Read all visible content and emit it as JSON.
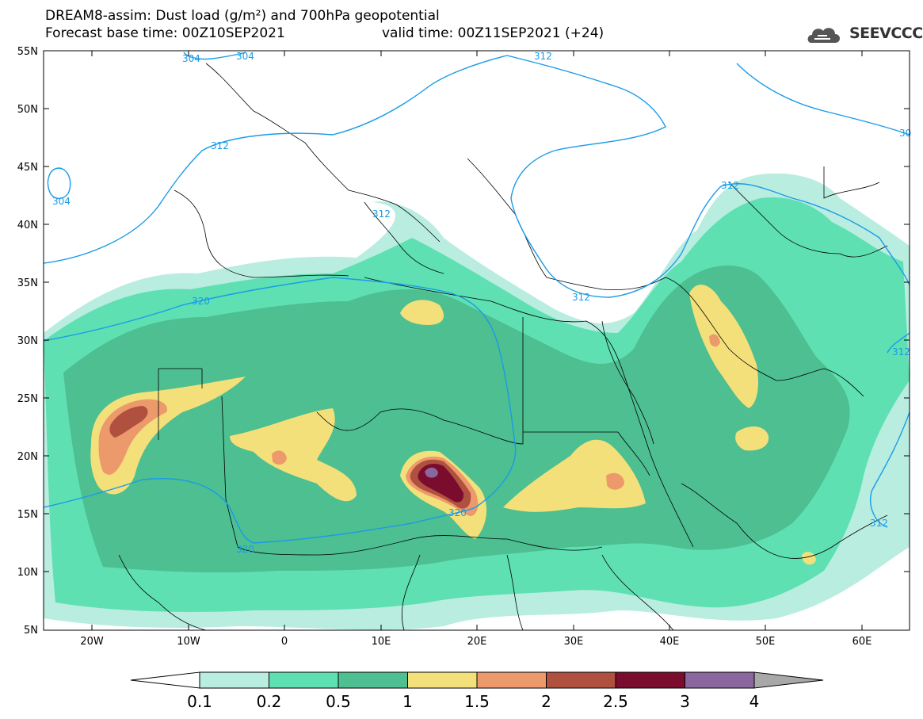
{
  "header": {
    "title_line1": "DREAM8-assim: Dust load (g/m²) and 700hPa geopotential",
    "title_line2a": "Forecast base time: 00Z10SEP2021",
    "title_line2b": "valid time: 00Z11SEP2021 (+24)",
    "logo_text": "SEEVCCC"
  },
  "map": {
    "lat_labels": [
      "55N",
      "50N",
      "45N",
      "40N",
      "35N",
      "30N",
      "25N",
      "20N",
      "15N",
      "10N",
      "5N"
    ],
    "lon_labels": [
      "20W",
      "10W",
      "0",
      "10E",
      "20E",
      "30E",
      "40E",
      "50E",
      "60E"
    ],
    "contour_labels": [
      "304",
      "304",
      "312",
      "304",
      "312",
      "312",
      "320",
      "312",
      "312",
      "320",
      "320",
      "312",
      "30",
      "312"
    ],
    "contour_color": "#1a9be8",
    "border_color": "#000000"
  },
  "colorbar": {
    "labels": [
      "0.1",
      "0.2",
      "0.5",
      "1",
      "1.5",
      "2",
      "2.5",
      "3",
      "4"
    ],
    "colors": [
      "#b9ede0",
      "#5ee0b3",
      "#4dbf91",
      "#f4e07a",
      "#ec9a6b",
      "#b0503f",
      "#7a0c2e",
      "#8b67a0",
      "#a8a8a8"
    ],
    "under_color": "#ffffff"
  }
}
